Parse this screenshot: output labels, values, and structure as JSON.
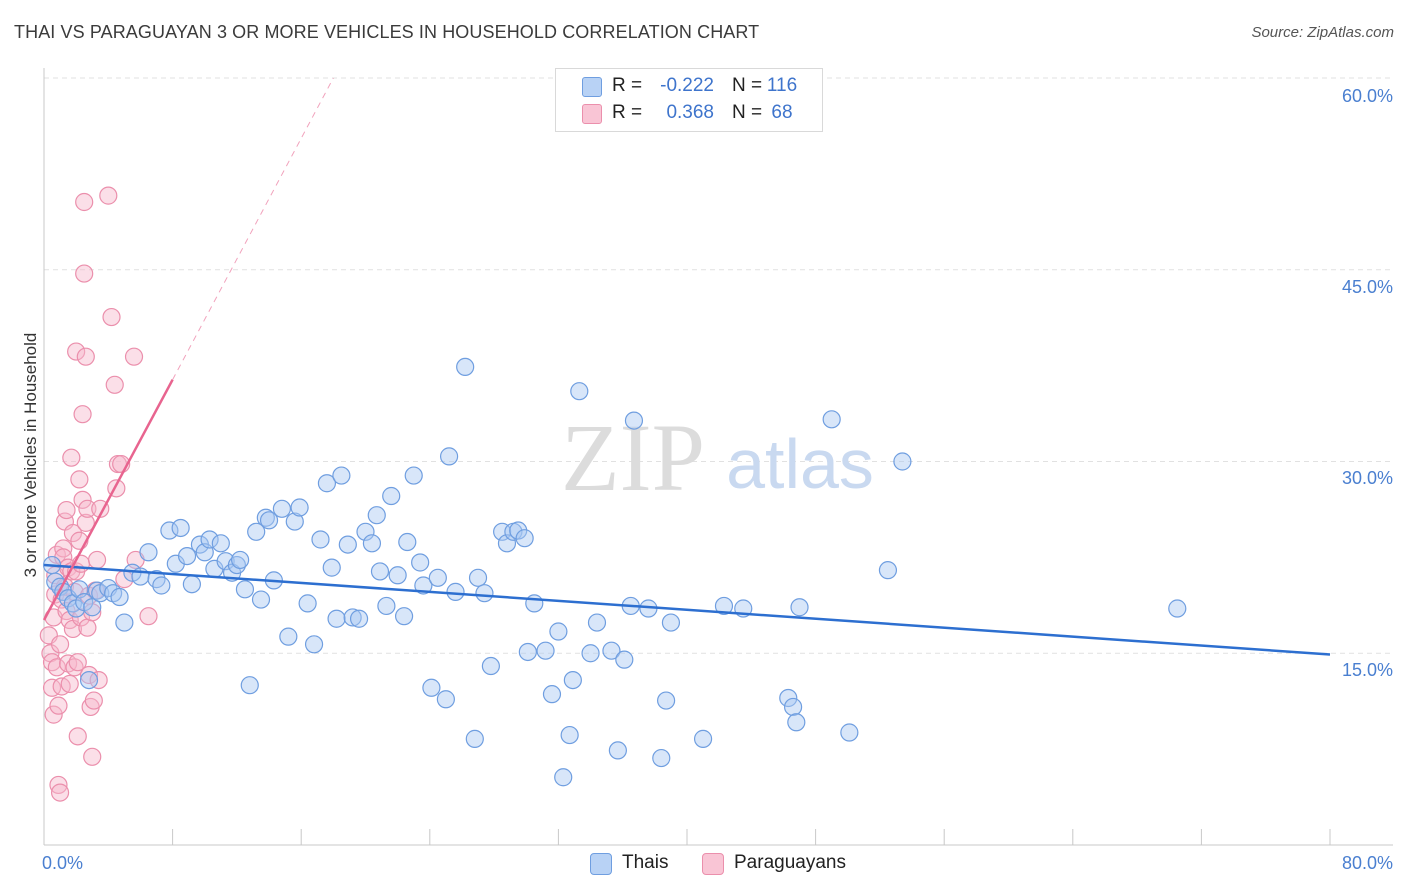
{
  "header": {
    "title": "THAI VS PARAGUAYAN 3 OR MORE VEHICLES IN HOUSEHOLD CORRELATION CHART",
    "source": "Source: ZipAtlas.com"
  },
  "legend": {
    "rows": [
      {
        "r_label": "R =",
        "r_value": "-0.222",
        "n_label": "N =",
        "n_value": "116"
      },
      {
        "r_label": "R =",
        "r_value": "0.368",
        "n_label": "N =",
        "n_value": "68"
      }
    ],
    "bottom": [
      "Thais",
      "Paraguayans"
    ]
  },
  "axes": {
    "ylabel": "3 or more Vehicles in Household",
    "y_ticks": [
      "60.0%",
      "45.0%",
      "30.0%",
      "15.0%"
    ],
    "x_ticks": [
      "0.0%",
      "80.0%"
    ]
  },
  "watermark": {
    "zip": "ZIP",
    "atlas": "atlas"
  },
  "colors": {
    "thai_fill": "#a9c8f2",
    "thai_stroke": "#6f9ee0",
    "thai_line": "#2d6fd0",
    "para_fill": "#f7b8cc",
    "para_stroke": "#eb8fac",
    "para_line": "#e8648f",
    "axis_text": "#4a7fd0",
    "grid": "#e1e1e1"
  },
  "chart_data": {
    "type": "scatter",
    "title": "THAI VS PARAGUAYAN 3 OR MORE VEHICLES IN HOUSEHOLD CORRELATION CHART",
    "xlabel": "",
    "ylabel": "3 or more Vehicles in Household",
    "xlim": [
      0,
      80
    ],
    "ylim": [
      0,
      60
    ],
    "y_gridlines": [
      15,
      30,
      45,
      60
    ],
    "x_ticks": [
      0,
      80
    ],
    "legend_position": "top-center",
    "series": [
      {
        "name": "Thais",
        "r": -0.222,
        "n": 116,
        "trend": {
          "x": [
            0,
            80
          ],
          "y": [
            21.9,
            14.9
          ],
          "style": "solid"
        },
        "points": [
          [
            0.5,
            21.9
          ],
          [
            0.7,
            20.6
          ],
          [
            1.0,
            20.2
          ],
          [
            1.2,
            19.8
          ],
          [
            1.5,
            19.3
          ],
          [
            1.8,
            18.9
          ],
          [
            2.0,
            18.5
          ],
          [
            2.2,
            20.0
          ],
          [
            2.5,
            19.0
          ],
          [
            2.8,
            12.9
          ],
          [
            3.0,
            18.6
          ],
          [
            3.3,
            19.9
          ],
          [
            3.5,
            19.7
          ],
          [
            4.0,
            20.1
          ],
          [
            4.3,
            19.7
          ],
          [
            4.7,
            19.4
          ],
          [
            5.0,
            17.4
          ],
          [
            5.5,
            21.3
          ],
          [
            6.0,
            21.0
          ],
          [
            6.5,
            22.9
          ],
          [
            7.0,
            20.8
          ],
          [
            7.3,
            20.3
          ],
          [
            7.8,
            24.6
          ],
          [
            8.2,
            22.0
          ],
          [
            8.5,
            24.8
          ],
          [
            8.9,
            22.6
          ],
          [
            9.2,
            20.4
          ],
          [
            9.7,
            23.5
          ],
          [
            10.0,
            22.9
          ],
          [
            10.3,
            23.9
          ],
          [
            10.6,
            21.6
          ],
          [
            11.0,
            23.6
          ],
          [
            11.3,
            22.2
          ],
          [
            11.7,
            21.3
          ],
          [
            12.0,
            21.9
          ],
          [
            12.2,
            22.3
          ],
          [
            12.5,
            20.0
          ],
          [
            12.8,
            12.5
          ],
          [
            13.2,
            24.5
          ],
          [
            13.5,
            19.2
          ],
          [
            13.8,
            25.6
          ],
          [
            14.0,
            25.4
          ],
          [
            14.3,
            20.7
          ],
          [
            14.8,
            26.3
          ],
          [
            15.2,
            16.3
          ],
          [
            15.6,
            25.3
          ],
          [
            15.9,
            26.4
          ],
          [
            16.4,
            18.9
          ],
          [
            16.8,
            15.7
          ],
          [
            17.2,
            23.9
          ],
          [
            17.6,
            28.3
          ],
          [
            17.9,
            21.7
          ],
          [
            18.2,
            17.7
          ],
          [
            18.5,
            28.9
          ],
          [
            18.9,
            23.5
          ],
          [
            19.2,
            17.8
          ],
          [
            19.6,
            17.7
          ],
          [
            20.0,
            24.5
          ],
          [
            20.4,
            23.6
          ],
          [
            20.7,
            25.8
          ],
          [
            20.9,
            21.4
          ],
          [
            21.3,
            18.7
          ],
          [
            21.6,
            27.3
          ],
          [
            22.0,
            21.1
          ],
          [
            22.4,
            17.9
          ],
          [
            22.6,
            23.7
          ],
          [
            23.0,
            28.9
          ],
          [
            23.4,
            22.1
          ],
          [
            23.6,
            20.3
          ],
          [
            24.1,
            12.3
          ],
          [
            24.5,
            20.9
          ],
          [
            25.0,
            11.4
          ],
          [
            25.2,
            30.4
          ],
          [
            25.6,
            19.8
          ],
          [
            26.2,
            37.4
          ],
          [
            26.8,
            8.3
          ],
          [
            27.0,
            20.9
          ],
          [
            27.4,
            19.7
          ],
          [
            27.8,
            14.0
          ],
          [
            28.5,
            24.5
          ],
          [
            28.8,
            23.6
          ],
          [
            29.2,
            24.5
          ],
          [
            29.5,
            24.6
          ],
          [
            29.9,
            24.0
          ],
          [
            30.1,
            15.1
          ],
          [
            30.5,
            18.9
          ],
          [
            31.2,
            15.2
          ],
          [
            31.6,
            11.8
          ],
          [
            32.0,
            16.7
          ],
          [
            32.3,
            5.3
          ],
          [
            32.7,
            8.6
          ],
          [
            32.9,
            12.9
          ],
          [
            33.3,
            35.5
          ],
          [
            34.0,
            15.0
          ],
          [
            34.4,
            17.4
          ],
          [
            35.3,
            15.2
          ],
          [
            35.7,
            7.4
          ],
          [
            36.1,
            14.5
          ],
          [
            36.5,
            18.7
          ],
          [
            36.7,
            33.2
          ],
          [
            37.6,
            18.5
          ],
          [
            38.4,
            6.8
          ],
          [
            38.7,
            11.3
          ],
          [
            39.0,
            17.4
          ],
          [
            41.0,
            8.3
          ],
          [
            42.3,
            18.7
          ],
          [
            43.5,
            18.5
          ],
          [
            46.3,
            11.5
          ],
          [
            46.6,
            10.8
          ],
          [
            46.8,
            9.6
          ],
          [
            47.0,
            18.6
          ],
          [
            49.0,
            33.3
          ],
          [
            50.1,
            8.8
          ],
          [
            52.5,
            21.5
          ],
          [
            53.4,
            30.0
          ],
          [
            70.5,
            18.5
          ]
        ]
      },
      {
        "name": "Paraguayans",
        "r": 0.368,
        "n": 68,
        "trend": {
          "x": [
            0,
            8
          ],
          "y": [
            17.6,
            36.4
          ],
          "style": "solid",
          "extension": {
            "x": [
              8,
              18
            ],
            "y": [
              36.4,
              60
            ]
          }
        },
        "points": [
          [
            0.3,
            16.4
          ],
          [
            0.4,
            15.0
          ],
          [
            0.5,
            12.3
          ],
          [
            0.5,
            14.3
          ],
          [
            0.6,
            10.2
          ],
          [
            0.6,
            17.8
          ],
          [
            0.7,
            19.6
          ],
          [
            0.7,
            21.1
          ],
          [
            0.8,
            22.7
          ],
          [
            0.8,
            13.9
          ],
          [
            0.9,
            10.9
          ],
          [
            0.9,
            4.7
          ],
          [
            1.0,
            4.1
          ],
          [
            1.0,
            15.7
          ],
          [
            1.1,
            19.2
          ],
          [
            1.1,
            12.4
          ],
          [
            1.2,
            23.2
          ],
          [
            1.2,
            22.5
          ],
          [
            1.3,
            25.3
          ],
          [
            1.3,
            20.2
          ],
          [
            1.4,
            26.2
          ],
          [
            1.4,
            18.3
          ],
          [
            1.5,
            21.7
          ],
          [
            1.5,
            14.2
          ],
          [
            1.6,
            17.6
          ],
          [
            1.6,
            12.6
          ],
          [
            1.7,
            30.3
          ],
          [
            1.7,
            21.4
          ],
          [
            1.8,
            24.4
          ],
          [
            1.8,
            16.9
          ],
          [
            1.9,
            19.8
          ],
          [
            1.9,
            13.9
          ],
          [
            2.0,
            38.6
          ],
          [
            2.0,
            21.4
          ],
          [
            2.1,
            8.5
          ],
          [
            2.1,
            14.3
          ],
          [
            2.2,
            23.8
          ],
          [
            2.2,
            28.6
          ],
          [
            2.3,
            22.0
          ],
          [
            2.3,
            17.8
          ],
          [
            2.4,
            27.0
          ],
          [
            2.4,
            33.7
          ],
          [
            2.5,
            50.3
          ],
          [
            2.5,
            44.7
          ],
          [
            2.6,
            38.2
          ],
          [
            2.6,
            25.2
          ],
          [
            2.7,
            26.3
          ],
          [
            2.7,
            17.0
          ],
          [
            2.8,
            19.5
          ],
          [
            2.8,
            13.3
          ],
          [
            2.9,
            10.8
          ],
          [
            3.0,
            18.2
          ],
          [
            3.0,
            6.9
          ],
          [
            3.1,
            11.3
          ],
          [
            3.2,
            19.9
          ],
          [
            3.3,
            22.3
          ],
          [
            3.4,
            12.9
          ],
          [
            3.5,
            26.3
          ],
          [
            4.0,
            50.8
          ],
          [
            4.2,
            41.3
          ],
          [
            4.4,
            36.0
          ],
          [
            4.5,
            27.9
          ],
          [
            4.6,
            29.8
          ],
          [
            4.8,
            29.8
          ],
          [
            5.0,
            20.8
          ],
          [
            5.6,
            38.2
          ],
          [
            5.7,
            22.3
          ],
          [
            6.5,
            17.9
          ]
        ]
      }
    ]
  }
}
